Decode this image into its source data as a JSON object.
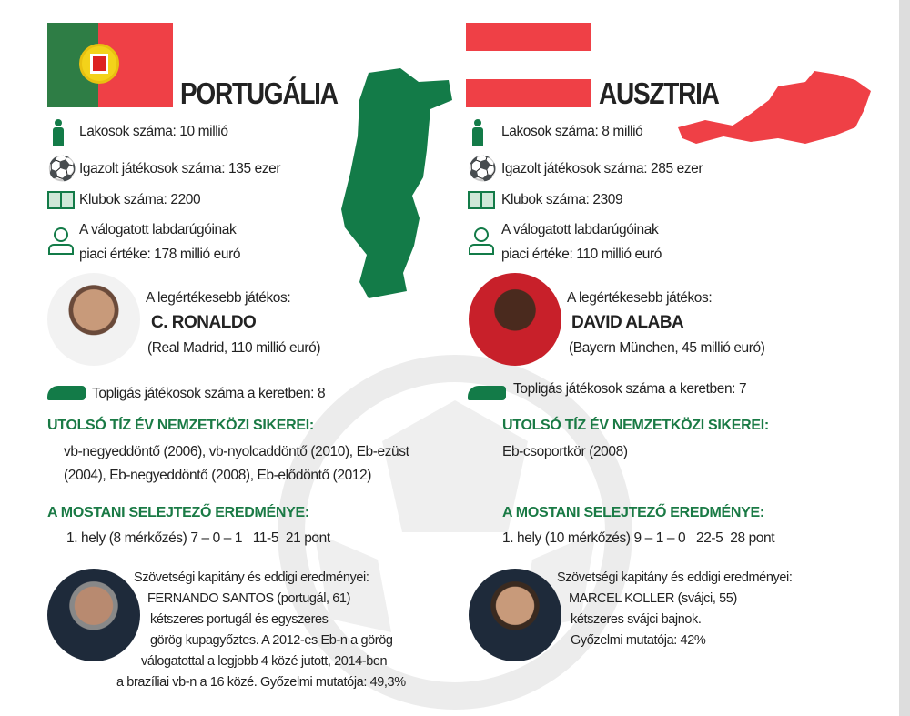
{
  "colors": {
    "green": "#137b48",
    "red": "#ef4046",
    "heading": "#1a7a45"
  },
  "portugal": {
    "title": "PORTUGÁLIA",
    "population": "Lakosok száma: 10 millió",
    "players": "Igazolt játékosok száma: 135 ezer",
    "clubs": "Klubok száma: 2200",
    "value_l1": "A válogatott labdarúgóinak",
    "value_l2": "piaci értéke: 178 millió euró",
    "mvp_label": "A legértékesebb játékos:",
    "mvp_name": "C. RONALDO",
    "mvp_club": "(Real Madrid, 110 millió euró)",
    "toplig": "Topligás játékosok száma a keretben: 8",
    "success_heading": "UTOLSÓ TÍZ ÉV NEMZETKÖZI SIKEREI:",
    "success_l1": "vb-negyeddöntő (2006), vb-nyolcaddöntő (2010), Eb-ezüst",
    "success_l2": "(2004), Eb-negyeddöntő (2008), Eb-elődöntő (2012)",
    "result_heading": "A MOSTANI SELEJTEZŐ EREDMÉNYE:",
    "result": "1. hely (8 mérkőzés) 7 – 0 – 1   11-5  21 pont",
    "coach_lines": [
      "Szövetségi kapitány és eddigi eredményei:",
      "FERNANDO SANTOS (portugál, 61)",
      "kétszeres portugál és egyszeres",
      "görög kupagyőztes. A 2012-es Eb-n a görög",
      "válogatottal a legjobb 4 közé jutott, 2014-ben",
      "a brazíliai vb-n a 16 közé. Győzelmi mutatója: 49,3%"
    ]
  },
  "austria": {
    "title": "AUSZTRIA",
    "population": "Lakosok száma: 8 millió",
    "players": "Igazolt játékosok száma: 285 ezer",
    "clubs": "Klubok száma: 2309",
    "value_l1": "A válogatott labdarúgóinak",
    "value_l2": "piaci értéke: 110 millió euró",
    "mvp_label": "A legértékesebb játékos:",
    "mvp_name": "DAVID ALABA",
    "mvp_club": "(Bayern München, 45 millió euró)",
    "toplig": "Topligás játékosok száma a keretben: 7",
    "success_heading": "UTOLSÓ TÍZ ÉV NEMZETKÖZI SIKEREI:",
    "success_l1": "Eb-csoportkör (2008)",
    "result_heading": "A MOSTANI SELEJTEZŐ EREDMÉNYE:",
    "result": "1. hely (10 mérkőzés) 9 – 1 – 0   22-5  28 pont",
    "coach_lines": [
      "Szövetségi kapitány és eddigi eredményei:",
      "MARCEL KOLLER (svájci, 55)",
      "kétszeres svájci bajnok.",
      "Győzelmi mutatója: 42%"
    ]
  }
}
